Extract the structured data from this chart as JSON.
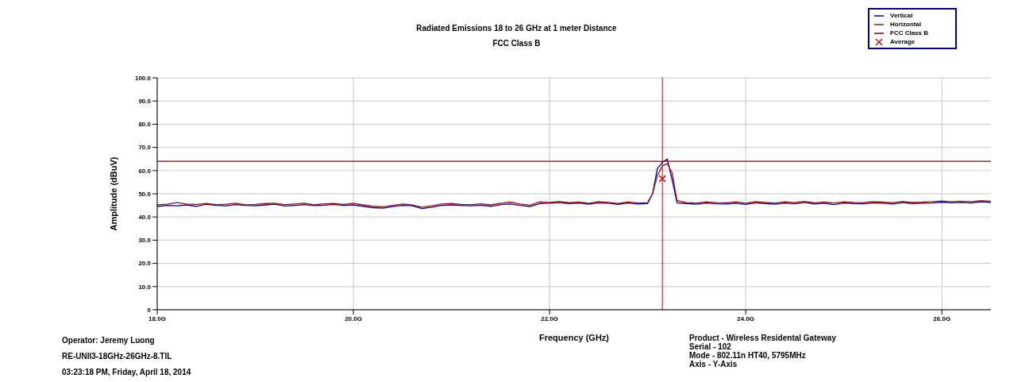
{
  "chart_data": {
    "type": "line",
    "subtitle": [
      "Radiated Emissions 18 to 26 GHz at 1 meter Distance",
      "FCC Class B"
    ],
    "xlabel": "Frequency (GHz)",
    "ylabel": "Amplitude (dBuV)",
    "xlim": [
      18,
      26.5
    ],
    "xticks": [
      {
        "value": 18,
        "label": "18.0G"
      },
      {
        "value": 20,
        "label": "20.0G"
      },
      {
        "value": 22,
        "label": "22.0G"
      },
      {
        "value": 24,
        "label": "24.0G"
      },
      {
        "value": 26,
        "label": "26.0G"
      }
    ],
    "ylim": [
      0,
      100
    ],
    "yticks": [
      0,
      {
        "value": 10,
        "label": "10.0"
      },
      {
        "value": 20,
        "label": "20.0"
      },
      {
        "value": 30,
        "label": "30.0"
      },
      {
        "value": 40,
        "label": "40.0"
      },
      {
        "value": 50,
        "label": "50.0"
      },
      {
        "value": 60,
        "label": "60.0"
      },
      {
        "value": 70,
        "label": "70.0"
      },
      {
        "value": 80,
        "label": "80.0"
      },
      {
        "value": 90,
        "label": "90.0"
      },
      {
        "value": 100,
        "label": "100.0"
      }
    ],
    "grid": true,
    "legend": "top right",
    "series": [
      {
        "name": "Vertical",
        "color": "#0000a0",
        "x": [
          18.0,
          18.1,
          18.2,
          18.3,
          18.4,
          18.5,
          18.6,
          18.7,
          18.8,
          18.9,
          19.0,
          19.1,
          19.2,
          19.3,
          19.4,
          19.5,
          19.6,
          19.7,
          19.8,
          19.9,
          20.0,
          20.1,
          20.2,
          20.3,
          20.4,
          20.5,
          20.6,
          20.7,
          20.8,
          20.9,
          21.0,
          21.1,
          21.2,
          21.3,
          21.4,
          21.5,
          21.6,
          21.7,
          21.8,
          21.9,
          22.0,
          22.1,
          22.2,
          22.3,
          22.4,
          22.5,
          22.6,
          22.7,
          22.8,
          22.9,
          23.0,
          23.05,
          23.1,
          23.15,
          23.2,
          23.25,
          23.3,
          23.4,
          23.5,
          23.6,
          23.7,
          23.8,
          23.9,
          24.0,
          24.1,
          24.2,
          24.3,
          24.4,
          24.5,
          24.6,
          24.7,
          24.8,
          24.9,
          25.0,
          25.1,
          25.2,
          25.3,
          25.4,
          25.5,
          25.6,
          25.7,
          25.8,
          25.9,
          26.0,
          26.1,
          26.2,
          26.3,
          26.4,
          26.5
        ],
        "values": [
          44.5,
          45.0,
          44.8,
          45.2,
          44.6,
          45.5,
          45.0,
          44.8,
          45.3,
          45.0,
          44.8,
          45.2,
          45.5,
          44.7,
          45.0,
          45.3,
          44.9,
          45.1,
          45.4,
          45.0,
          45.2,
          44.6,
          44.0,
          43.8,
          44.5,
          45.0,
          44.8,
          43.6,
          44.2,
          45.0,
          45.2,
          45.0,
          44.8,
          45.1,
          44.6,
          45.3,
          45.6,
          45.0,
          44.5,
          45.8,
          45.9,
          46.2,
          45.8,
          46.0,
          45.5,
          46.1,
          45.9,
          45.4,
          46.0,
          45.6,
          45.8,
          50,
          61,
          63.5,
          65,
          56,
          46,
          45.8,
          45.5,
          46.0,
          45.7,
          45.6,
          45.9,
          45.4,
          46.1,
          45.8,
          45.5,
          46.0,
          45.7,
          46.3,
          45.6,
          45.9,
          45.3,
          46.0,
          45.8,
          45.7,
          46.1,
          45.9,
          45.6,
          46.2,
          45.8,
          45.9,
          46.0,
          46.4,
          46.1,
          46.3,
          46.0,
          46.5,
          46.3
        ]
      },
      {
        "name": "Horizontal",
        "color": "#a01010",
        "x": [
          18.0,
          18.1,
          18.2,
          18.3,
          18.4,
          18.5,
          18.6,
          18.7,
          18.8,
          18.9,
          19.0,
          19.1,
          19.2,
          19.3,
          19.4,
          19.5,
          19.6,
          19.7,
          19.8,
          19.9,
          20.0,
          20.1,
          20.2,
          20.3,
          20.4,
          20.5,
          20.6,
          20.7,
          20.8,
          20.9,
          21.0,
          21.1,
          21.2,
          21.3,
          21.4,
          21.5,
          21.6,
          21.7,
          21.8,
          21.9,
          22.0,
          22.1,
          22.2,
          22.3,
          22.4,
          22.5,
          22.6,
          22.7,
          22.8,
          22.9,
          23.0,
          23.05,
          23.1,
          23.15,
          23.2,
          23.25,
          23.3,
          23.4,
          23.5,
          23.6,
          23.7,
          23.8,
          23.9,
          24.0,
          24.1,
          24.2,
          24.3,
          24.4,
          24.5,
          24.6,
          24.7,
          24.8,
          24.9,
          25.0,
          25.1,
          25.2,
          25.3,
          25.4,
          25.5,
          25.6,
          25.7,
          25.8,
          25.9,
          26.0,
          26.1,
          26.2,
          26.3,
          26.4,
          26.5
        ],
        "values": [
          45.2,
          45.5,
          46.2,
          45.6,
          45.4,
          45.8,
          45.3,
          45.5,
          45.9,
          45.2,
          45.4,
          45.8,
          45.9,
          45.3,
          45.6,
          45.9,
          45.2,
          45.7,
          45.8,
          45.4,
          45.9,
          45.2,
          44.6,
          44.4,
          45.0,
          45.6,
          45.2,
          44.2,
          44.8,
          45.6,
          45.8,
          45.4,
          45.3,
          45.7,
          45.2,
          45.9,
          46.4,
          45.6,
          45.1,
          46.5,
          46.3,
          46.7,
          46.2,
          46.4,
          45.9,
          46.6,
          46.3,
          45.8,
          46.5,
          46.0,
          46.2,
          50,
          58,
          62,
          63,
          59,
          47,
          46.2,
          46.0,
          46.5,
          46.2,
          46.1,
          46.5,
          45.9,
          46.6,
          46.3,
          46.0,
          46.5,
          46.3,
          46.7,
          46.1,
          46.4,
          46.0,
          46.5,
          46.3,
          46.2,
          46.6,
          46.4,
          46.2,
          46.7,
          46.3,
          46.4,
          46.6,
          46.9,
          46.6,
          46.8,
          46.6,
          47.0,
          46.8
        ]
      },
      {
        "name": "FCC Class B",
        "color": "#8b0000",
        "x": [
          18,
          26.5
        ],
        "values": [
          64,
          64
        ]
      },
      {
        "name": "Average",
        "color": "#c00000",
        "type": "scatter",
        "marker": "cross",
        "x": [
          23.15
        ],
        "values": [
          56.5
        ]
      }
    ],
    "ref_lines": [
      {
        "axis": "x",
        "value": 23.15,
        "color": "#a01010"
      }
    ],
    "annotations": [
      "Operator: Jeremy Luong",
      "RE-UNII3-18GHz-26GHz-8.TIL",
      "03:23:18 PM, Friday, April 18, 2014",
      "Product - Wireless Residental Gateway",
      "Serial - 102",
      "Mode - 802.11n HT40, 5795MHz",
      "Axis - Y-Axis"
    ]
  }
}
